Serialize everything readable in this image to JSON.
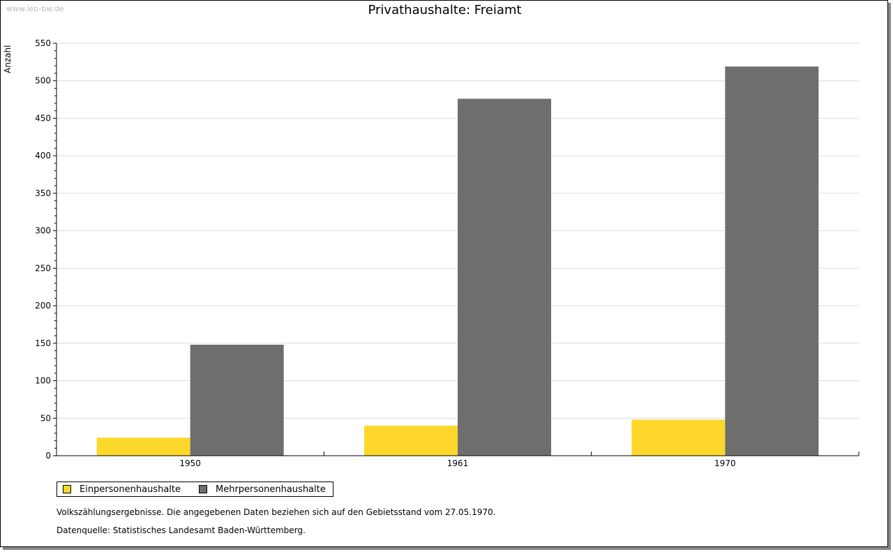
{
  "watermark": "www.leo-bw.de",
  "chart_data": {
    "type": "bar",
    "title": "Privathaushalte: Freiamt",
    "xlabel": "",
    "ylabel": "Anzahl",
    "categories": [
      "1950",
      "1961",
      "1970"
    ],
    "series": [
      {
        "name": "Einpersonenhaushalte",
        "color": "#fdd82a",
        "values": [
          24,
          40,
          48
        ]
      },
      {
        "name": "Mehrpersonenhaushalte",
        "color": "#6e6e6e",
        "values": [
          148,
          476,
          519
        ]
      }
    ],
    "ylim": [
      0,
      550
    ],
    "yticks": [
      "0",
      "50",
      "100",
      "150",
      "200",
      "250",
      "300",
      "350",
      "400",
      "450",
      "500",
      "550"
    ],
    "grid": true,
    "legend_position": "bottom-left"
  },
  "notes": {
    "line1": "Volkszählungsergebnisse. Die angegebenen Daten beziehen sich auf den Gebietsstand vom 27.05.1970.",
    "line2": "Datenquelle: Statistisches Landesamt Baden-Württemberg."
  }
}
